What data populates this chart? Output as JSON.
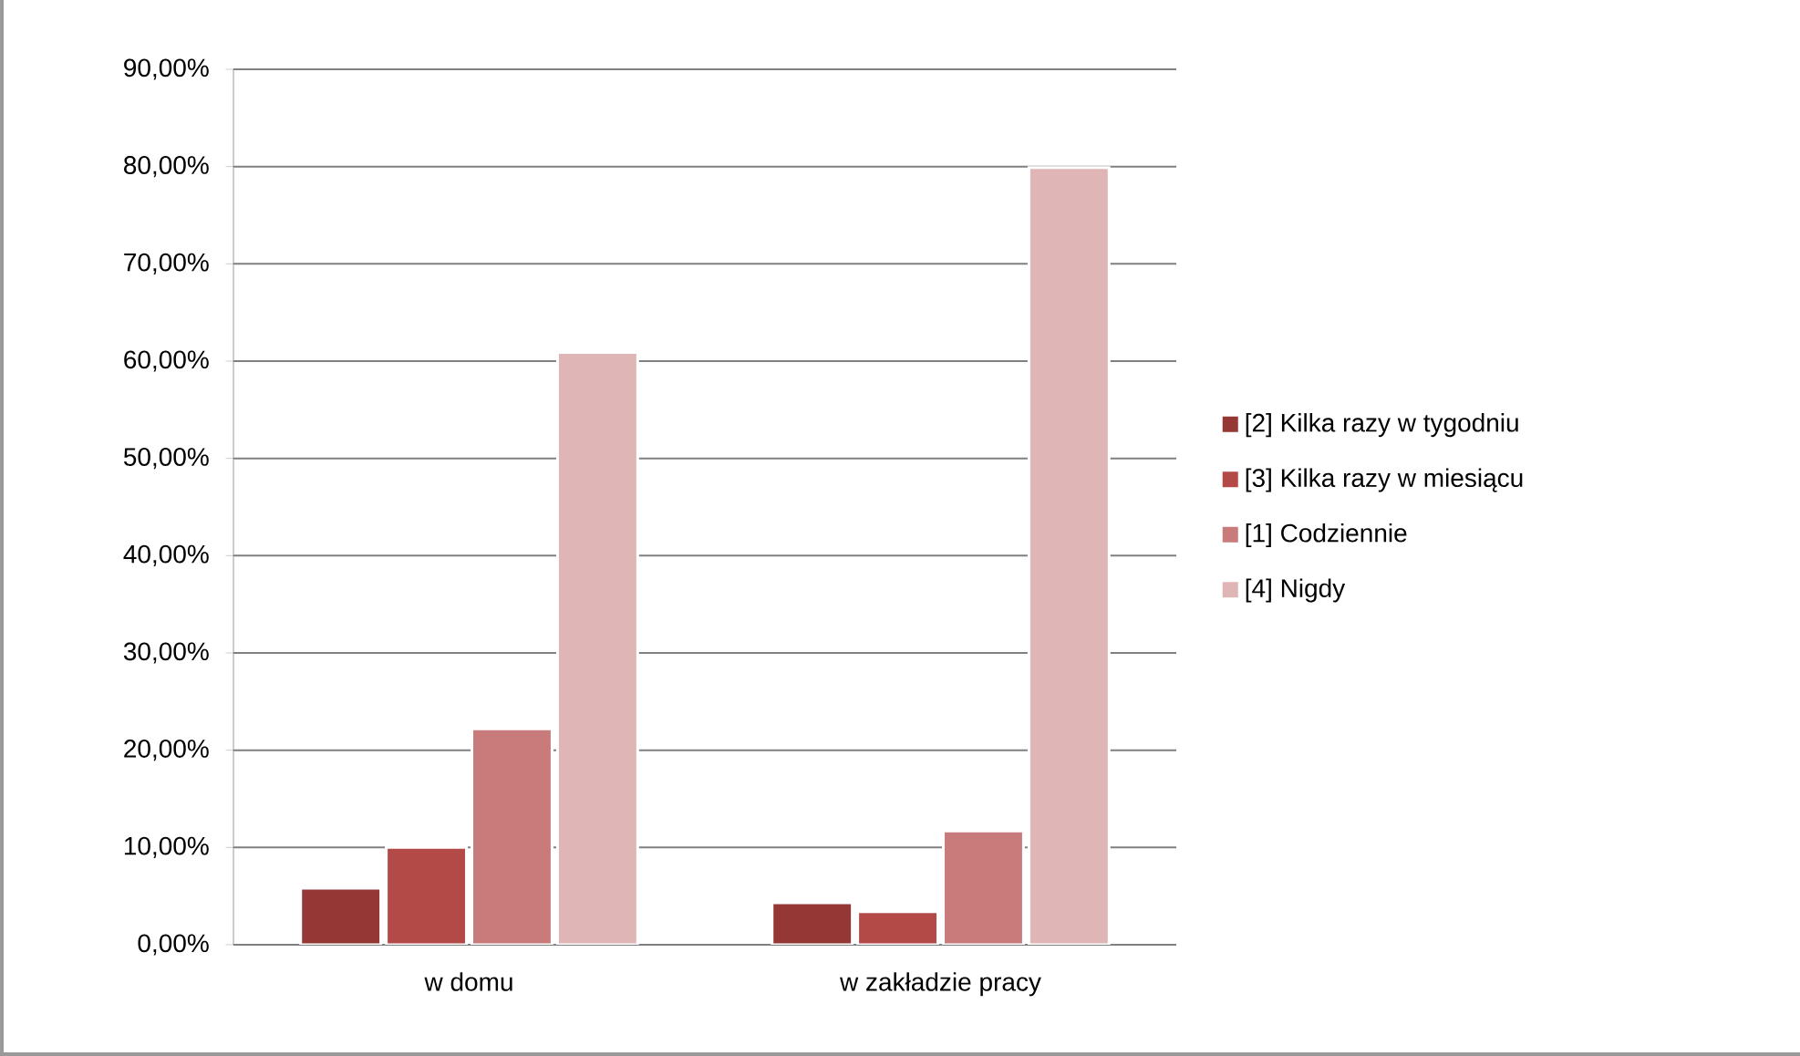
{
  "chart_data": {
    "type": "bar",
    "categories": [
      "w domu",
      "w zakładzie pracy"
    ],
    "series": [
      {
        "name": "[2] Kilka razy w tygodniu",
        "color": "#953735",
        "values": [
          5.8,
          4.3
        ]
      },
      {
        "name": "[3] Kilka razy w miesiącu",
        "color": "#b34a48",
        "values": [
          10.0,
          3.4
        ]
      },
      {
        "name": "[1] Codziennie",
        "color": "#c97b7b",
        "values": [
          22.2,
          11.7
        ]
      },
      {
        "name": "[4] Nigdy",
        "color": "#dfb5b5",
        "values": [
          60.9,
          79.9
        ]
      }
    ],
    "ylim": [
      0,
      90
    ],
    "yticks": [
      {
        "value": 0,
        "label": "0,00%"
      },
      {
        "value": 10,
        "label": "10,00%"
      },
      {
        "value": 20,
        "label": "20,00%"
      },
      {
        "value": 30,
        "label": "30,00%"
      },
      {
        "value": 40,
        "label": "40,00%"
      },
      {
        "value": 50,
        "label": "50,00%"
      },
      {
        "value": 60,
        "label": "60,00%"
      },
      {
        "value": 70,
        "label": "70,00%"
      },
      {
        "value": 80,
        "label": "80,00%"
      },
      {
        "value": 90,
        "label": "90,00%"
      }
    ],
    "grid": "y",
    "legend": "right"
  }
}
